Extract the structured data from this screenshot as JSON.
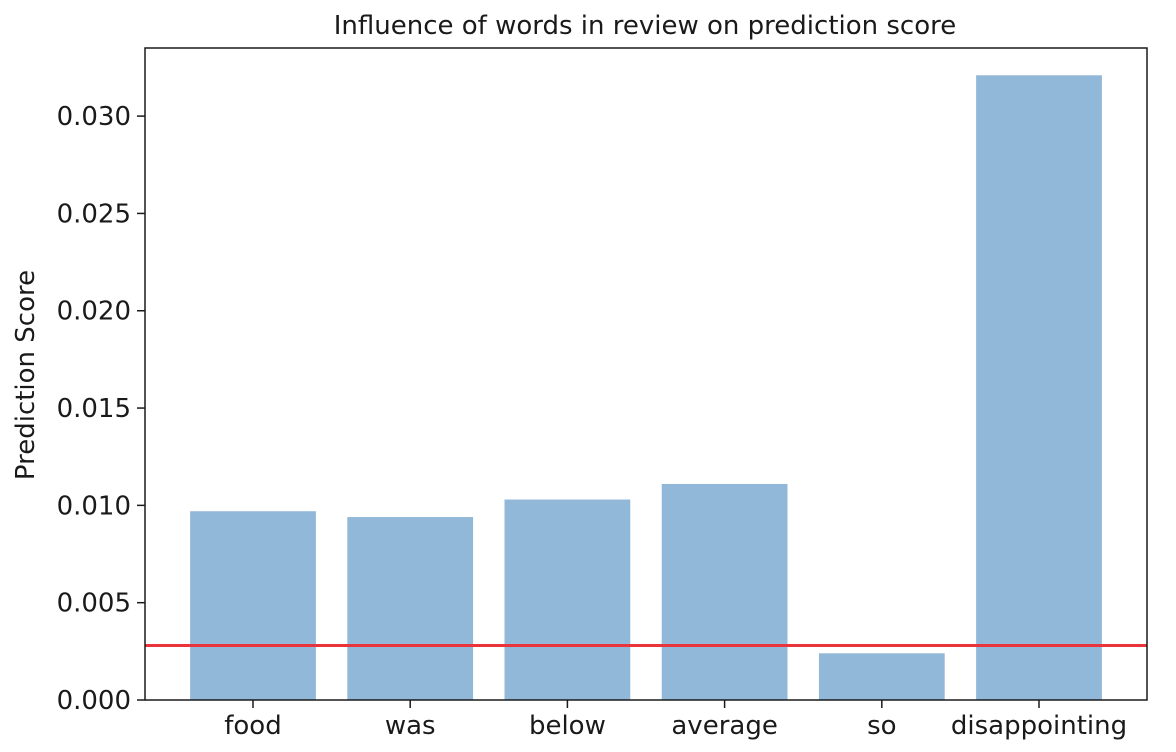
{
  "chart_data": {
    "type": "bar",
    "title": "Influence of words in review on prediction score",
    "xlabel": "",
    "ylabel": "Prediction Score",
    "categories": [
      "food",
      "was",
      "below",
      "average",
      "so",
      "disappointing"
    ],
    "values": [
      0.0097,
      0.0094,
      0.0103,
      0.0111,
      0.0024,
      0.0321
    ],
    "ylim": [
      0.0,
      0.0335
    ],
    "yticks": [
      0.0,
      0.005,
      0.01,
      0.015,
      0.02,
      0.025,
      0.03
    ],
    "ytick_labels": [
      "0.000",
      "0.005",
      "0.010",
      "0.015",
      "0.020",
      "0.025",
      "0.030"
    ],
    "reference_line": {
      "y": 0.0028,
      "color": "#e8343a"
    },
    "bar_color": "#92b8d9",
    "grid": false,
    "legend": "none"
  }
}
